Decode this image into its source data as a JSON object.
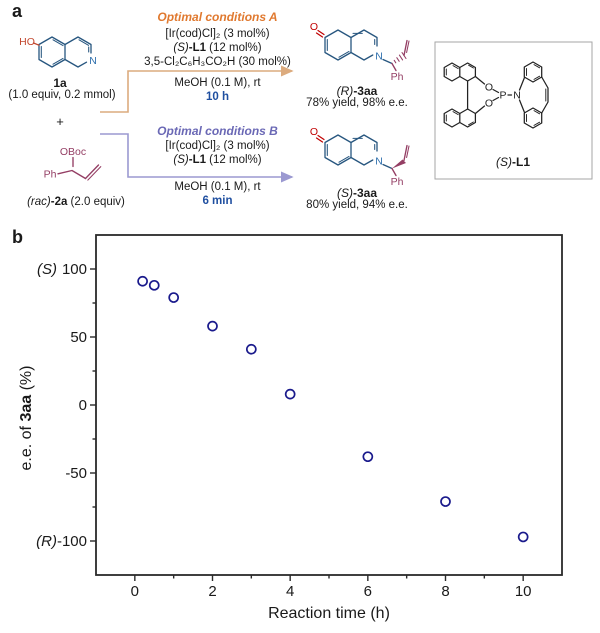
{
  "figure": {
    "panel_a_label": "a",
    "panel_b_label": "b"
  },
  "scheme": {
    "reactant_1a": {
      "ho": "HO",
      "n": "N",
      "name": "1a",
      "equiv": "(1.0 equiv, 0.2 mmol)"
    },
    "plus": "+",
    "reactant_2a": {
      "oboc": "OBoc",
      "ph": "Ph",
      "name_italic": "(rac)",
      "name_bold": "-2a",
      "name_rest": " (2.0 equiv)"
    },
    "conditions_a": {
      "title": "Optimal conditions A",
      "catalyst": "[Ir(cod)Cl]₂ (3 mol%)",
      "ligand_italic": "(S)",
      "ligand_bold": "-L1",
      "ligand_rest": " (12 mol%)",
      "acid": "3,5-Cl₂C₆H₃CO₂H (30 mol%)",
      "solvent": "MeOH (0.1 M), rt",
      "time": "10 h"
    },
    "conditions_b": {
      "title": "Optimal conditions B",
      "catalyst": "[Ir(cod)Cl]₂ (3 mol%)",
      "ligand_italic": "(S)",
      "ligand_bold": "-L1",
      "ligand_rest": " (12 mol%)",
      "solvent": "MeOH (0.1 M), rt",
      "time": "6 min"
    },
    "product_r": {
      "o": "O",
      "n": "N",
      "ph": "Ph",
      "name_italic": "(R)",
      "name_bold": "-3aa",
      "result": "78% yield, 98% e.e."
    },
    "product_s": {
      "o": "O",
      "n": "N",
      "ph": "Ph",
      "name_italic": "(S)",
      "name_bold": "-3aa",
      "result": "80% yield, 94% e.e."
    },
    "ligand_box": {
      "o1": "O",
      "o2": "O",
      "p": "P",
      "n": "N",
      "label_italic": "(S)",
      "label_bold": "-L1"
    }
  },
  "chart_data": {
    "type": "scatter",
    "x": [
      0.2,
      0.5,
      1,
      2,
      3,
      4,
      6,
      8,
      10
    ],
    "y": [
      91,
      88,
      79,
      58,
      41,
      8,
      -38,
      -71,
      -97
    ],
    "series_name": "e.e. of 3aa",
    "xlabel": "Reaction time (h)",
    "ylabel": "e.e. of 3aa (%)",
    "ylabel_parts": [
      "e.e. of ",
      "3aa",
      " (%)"
    ],
    "xlim": [
      -1,
      11
    ],
    "ylim": [
      -125,
      125
    ],
    "x_ticks": [
      0,
      2,
      4,
      6,
      8,
      10
    ],
    "x_minor_ticks": [
      1,
      3,
      5,
      7,
      9
    ],
    "y_ticks": [
      100,
      50,
      0,
      -50,
      -100
    ],
    "y_minor_ticks": [
      -75,
      -25,
      25,
      75
    ],
    "grid": false,
    "legend": "none",
    "annotations": {
      "top": "(S)",
      "bottom": "(R)"
    },
    "marker": {
      "shape": "open-circle",
      "color": "#1a1a8c"
    }
  },
  "colors": {
    "conditions-a": "#e0792f",
    "conditions-b": "#6a68b5",
    "time-blue": "#1f4fa0",
    "arrow-a": "#dcab7e",
    "arrow-b": "#9b99d1",
    "structure-blue": "#27567f",
    "n-blue": "#2e6fad",
    "maroon": "#943e64",
    "ho-red": "#c2472e",
    "o-red": "#c00000",
    "marker": "#1a1a8c"
  }
}
